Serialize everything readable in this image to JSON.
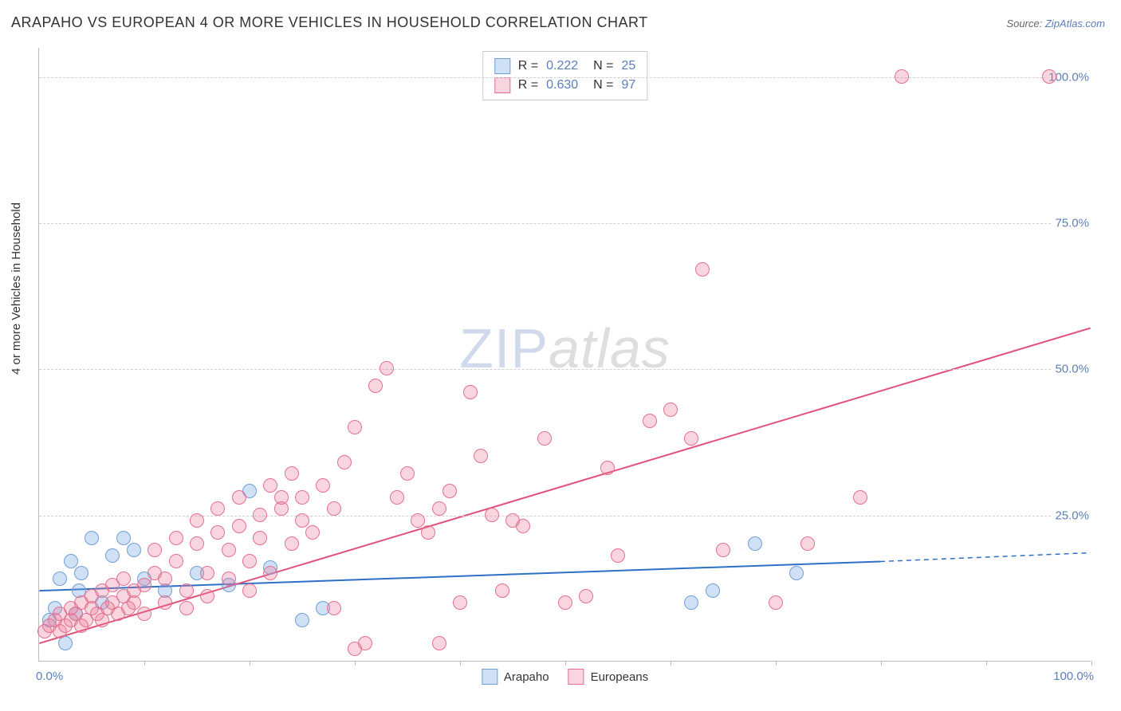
{
  "title": "ARAPAHO VS EUROPEAN 4 OR MORE VEHICLES IN HOUSEHOLD CORRELATION CHART",
  "source_label": "Source:",
  "source_value": "ZipAtlas.com",
  "ylabel": "4 or more Vehicles in Household",
  "watermark_left": "ZIP",
  "watermark_right": "atlas",
  "chart": {
    "type": "scatter",
    "xlim": [
      0,
      100
    ],
    "ylim": [
      0,
      105
    ],
    "ytick_values": [
      25,
      50,
      75,
      100
    ],
    "ytick_labels": [
      "25.0%",
      "50.0%",
      "75.0%",
      "100.0%"
    ],
    "xaxis_left_label": "0.0%",
    "xaxis_right_label": "100.0%",
    "xtick_positions": [
      10,
      20,
      30,
      40,
      50,
      60,
      70,
      80,
      90,
      100
    ],
    "grid_color": "#d0d0d0",
    "axis_color": "#bbbbbb",
    "background_color": "#ffffff",
    "point_radius": 9,
    "series": [
      {
        "name": "Arapaho",
        "fill": "rgba(120,165,225,0.35)",
        "stroke": "#6f9fd8",
        "r_value": "0.222",
        "n_value": "25",
        "regression": {
          "x1": 0,
          "y1": 12,
          "x2": 80,
          "y2": 17,
          "extend_x2": 100,
          "extend_y2": 18.5,
          "color": "#2f6fc4",
          "width": 2
        },
        "points": [
          [
            1,
            7
          ],
          [
            1.5,
            9
          ],
          [
            2,
            14
          ],
          [
            2.5,
            3
          ],
          [
            3,
            17
          ],
          [
            3.5,
            8
          ],
          [
            3.8,
            12
          ],
          [
            4,
            15
          ],
          [
            5,
            21
          ],
          [
            6,
            10
          ],
          [
            7,
            18
          ],
          [
            8,
            21
          ],
          [
            9,
            19
          ],
          [
            10,
            14
          ],
          [
            12,
            12
          ],
          [
            15,
            15
          ],
          [
            18,
            13
          ],
          [
            20,
            29
          ],
          [
            22,
            16
          ],
          [
            25,
            7
          ],
          [
            27,
            9
          ],
          [
            62,
            10
          ],
          [
            68,
            20
          ],
          [
            72,
            15
          ],
          [
            64,
            12
          ]
        ]
      },
      {
        "name": "Europeans",
        "fill": "rgba(235,120,150,0.30)",
        "stroke": "#e36f8f",
        "r_value": "0.630",
        "n_value": "97",
        "regression": {
          "x1": 0,
          "y1": 3,
          "x2": 100,
          "y2": 57,
          "color": "#e15079",
          "width": 2
        },
        "points": [
          [
            0.5,
            5
          ],
          [
            1,
            6
          ],
          [
            1.5,
            7
          ],
          [
            2,
            5
          ],
          [
            2,
            8
          ],
          [
            2.5,
            6
          ],
          [
            3,
            9
          ],
          [
            3,
            7
          ],
          [
            3.5,
            8
          ],
          [
            4,
            6
          ],
          [
            4,
            10
          ],
          [
            4.5,
            7
          ],
          [
            5,
            9
          ],
          [
            5,
            11
          ],
          [
            5.5,
            8
          ],
          [
            6,
            7
          ],
          [
            6,
            12
          ],
          [
            6.5,
            9
          ],
          [
            7,
            10
          ],
          [
            7,
            13
          ],
          [
            7.5,
            8
          ],
          [
            8,
            11
          ],
          [
            8,
            14
          ],
          [
            8.5,
            9
          ],
          [
            9,
            12
          ],
          [
            9,
            10
          ],
          [
            10,
            13
          ],
          [
            10,
            8
          ],
          [
            11,
            15
          ],
          [
            11,
            19
          ],
          [
            12,
            14
          ],
          [
            12,
            10
          ],
          [
            13,
            17
          ],
          [
            13,
            21
          ],
          [
            14,
            12
          ],
          [
            14,
            9
          ],
          [
            15,
            20
          ],
          [
            15,
            24
          ],
          [
            16,
            15
          ],
          [
            16,
            11
          ],
          [
            17,
            22
          ],
          [
            17,
            26
          ],
          [
            18,
            14
          ],
          [
            18,
            19
          ],
          [
            19,
            23
          ],
          [
            19,
            28
          ],
          [
            20,
            12
          ],
          [
            20,
            17
          ],
          [
            21,
            21
          ],
          [
            21,
            25
          ],
          [
            22,
            30
          ],
          [
            22,
            15
          ],
          [
            23,
            26
          ],
          [
            23,
            28
          ],
          [
            24,
            20
          ],
          [
            24,
            32
          ],
          [
            25,
            24
          ],
          [
            25,
            28
          ],
          [
            26,
            22
          ],
          [
            27,
            30
          ],
          [
            28,
            26
          ],
          [
            28,
            9
          ],
          [
            29,
            34
          ],
          [
            30,
            40
          ],
          [
            30,
            2
          ],
          [
            31,
            3
          ],
          [
            32,
            47
          ],
          [
            33,
            50
          ],
          [
            34,
            28
          ],
          [
            35,
            32
          ],
          [
            36,
            24
          ],
          [
            37,
            22
          ],
          [
            38,
            26
          ],
          [
            38,
            3
          ],
          [
            39,
            29
          ],
          [
            40,
            10
          ],
          [
            41,
            46
          ],
          [
            42,
            35
          ],
          [
            43,
            25
          ],
          [
            44,
            12
          ],
          [
            45,
            24
          ],
          [
            46,
            23
          ],
          [
            48,
            38
          ],
          [
            50,
            10
          ],
          [
            52,
            11
          ],
          [
            54,
            33
          ],
          [
            55,
            18
          ],
          [
            58,
            41
          ],
          [
            60,
            43
          ],
          [
            62,
            38
          ],
          [
            63,
            67
          ],
          [
            65,
            19
          ],
          [
            70,
            10
          ],
          [
            73,
            20
          ],
          [
            78,
            28
          ],
          [
            82,
            100
          ],
          [
            96,
            100
          ]
        ]
      }
    ],
    "legend_bottom": [
      {
        "label": "Arapaho",
        "fill": "rgba(120,165,225,0.35)",
        "stroke": "#6f9fd8"
      },
      {
        "label": "Europeans",
        "fill": "rgba(235,120,150,0.30)",
        "stroke": "#e36f8f"
      }
    ]
  }
}
